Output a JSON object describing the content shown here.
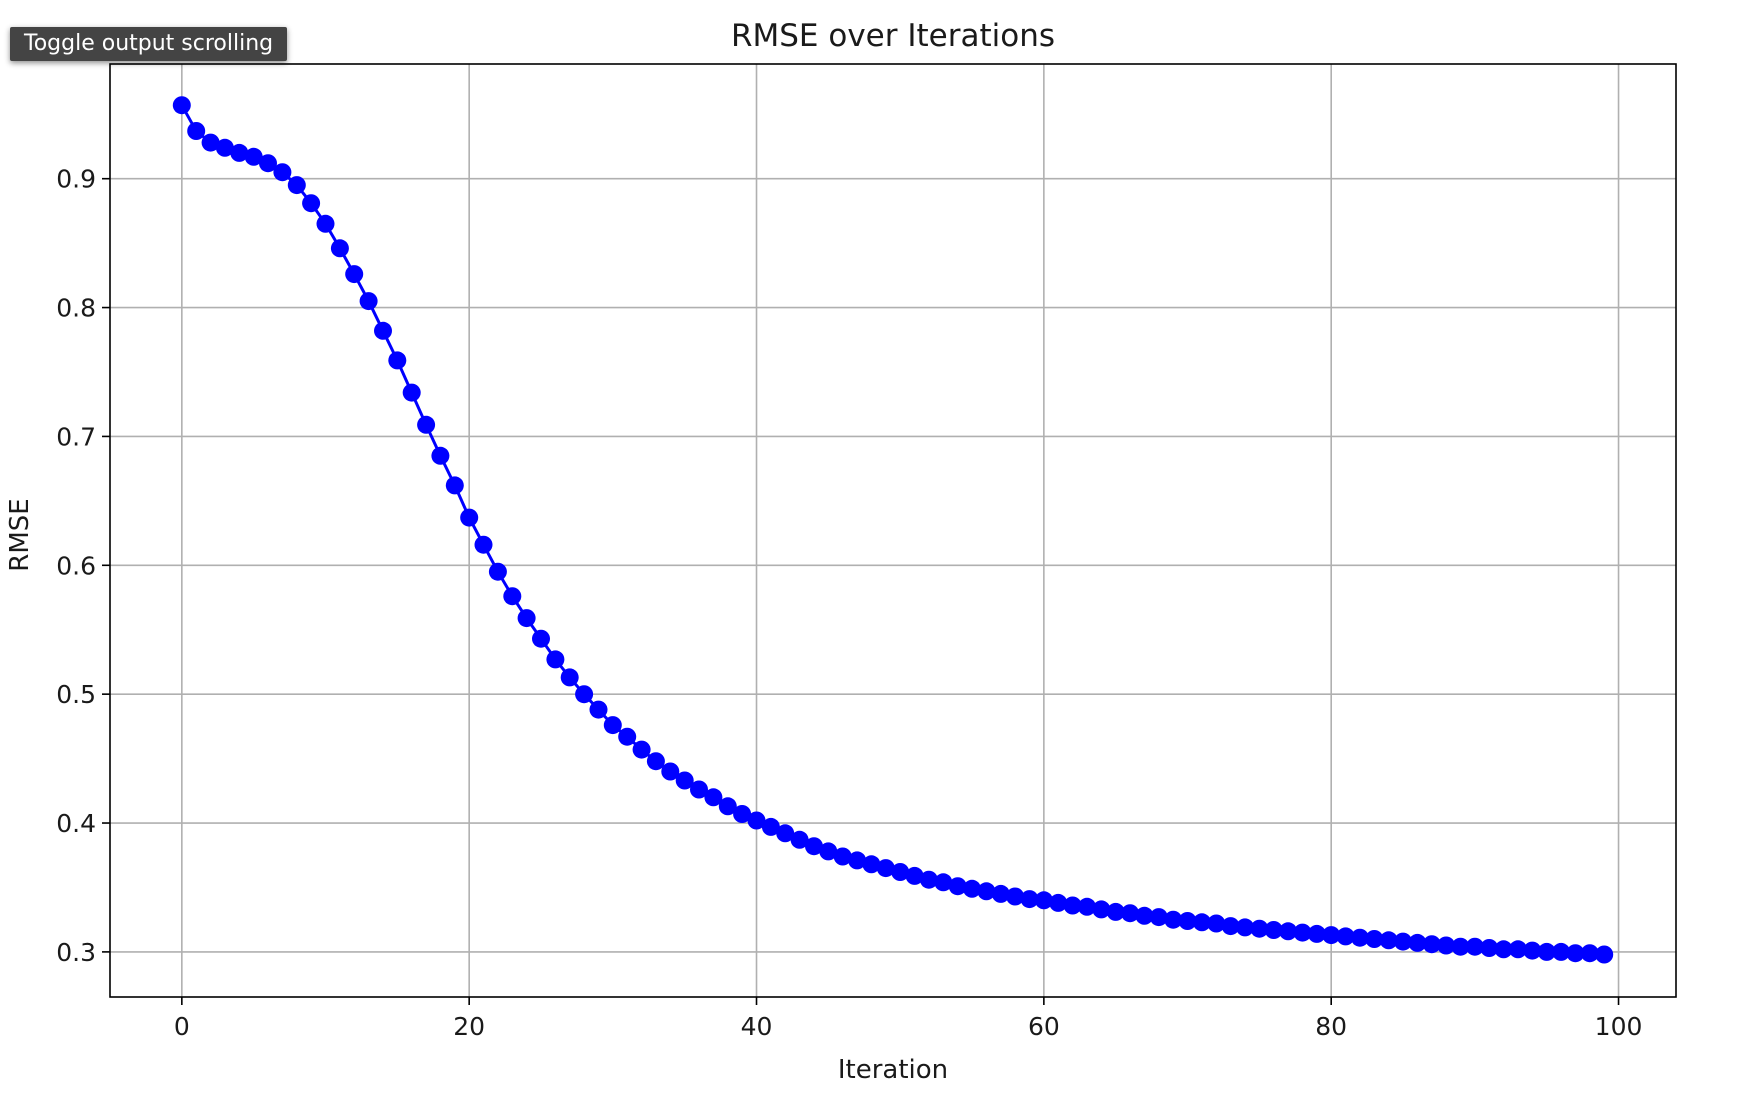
{
  "tooltip": {
    "label": "Toggle output scrolling"
  },
  "chart_data": {
    "type": "line",
    "title": "RMSE over Iterations",
    "xlabel": "Iteration",
    "ylabel": "RMSE",
    "xlim": [
      -5,
      104
    ],
    "ylim": [
      0.265,
      0.989
    ],
    "xticks": [
      0,
      20,
      40,
      60,
      80,
      100
    ],
    "xtick_labels": [
      "0",
      "20",
      "40",
      "60",
      "80",
      "100"
    ],
    "yticks": [
      0.3,
      0.4,
      0.5,
      0.6,
      0.7,
      0.8,
      0.9
    ],
    "ytick_labels": [
      "0.3",
      "0.4",
      "0.5",
      "0.6",
      "0.7",
      "0.8",
      "0.9"
    ],
    "grid": true,
    "marker": "o",
    "color": "#0000ff",
    "series": [
      {
        "x": [
          0,
          1,
          2,
          3,
          4,
          5,
          6,
          7,
          8,
          9,
          10,
          11,
          12,
          13,
          14,
          15,
          16,
          17,
          18,
          19,
          20,
          21,
          22,
          23,
          24,
          25,
          26,
          27,
          28,
          29,
          30,
          31,
          32,
          33,
          34,
          35,
          36,
          37,
          38,
          39,
          40,
          41,
          42,
          43,
          44,
          45,
          46,
          47,
          48,
          49,
          50,
          51,
          52,
          53,
          54,
          55,
          56,
          57,
          58,
          59,
          60,
          61,
          62,
          63,
          64,
          65,
          66,
          67,
          68,
          69,
          70,
          71,
          72,
          73,
          74,
          75,
          76,
          77,
          78,
          79,
          80,
          81,
          82,
          83,
          84,
          85,
          86,
          87,
          88,
          89,
          90,
          91,
          92,
          93,
          94,
          95,
          96,
          97,
          98,
          99
        ],
        "values": [
          0.957,
          0.937,
          0.928,
          0.924,
          0.92,
          0.917,
          0.912,
          0.905,
          0.895,
          0.881,
          0.865,
          0.846,
          0.826,
          0.805,
          0.782,
          0.759,
          0.734,
          0.709,
          0.685,
          0.662,
          0.637,
          0.616,
          0.595,
          0.576,
          0.559,
          0.543,
          0.527,
          0.513,
          0.5,
          0.488,
          0.476,
          0.467,
          0.457,
          0.448,
          0.44,
          0.433,
          0.426,
          0.42,
          0.413,
          0.407,
          0.402,
          0.397,
          0.392,
          0.387,
          0.382,
          0.378,
          0.374,
          0.371,
          0.368,
          0.365,
          0.362,
          0.359,
          0.356,
          0.354,
          0.351,
          0.349,
          0.347,
          0.345,
          0.343,
          0.341,
          0.34,
          0.338,
          0.336,
          0.335,
          0.333,
          0.331,
          0.33,
          0.328,
          0.327,
          0.325,
          0.324,
          0.323,
          0.322,
          0.32,
          0.319,
          0.318,
          0.317,
          0.316,
          0.315,
          0.314,
          0.313,
          0.312,
          0.311,
          0.31,
          0.309,
          0.308,
          0.307,
          0.306,
          0.305,
          0.304,
          0.304,
          0.303,
          0.302,
          0.302,
          0.301,
          0.3,
          0.3,
          0.299,
          0.299,
          0.298
        ]
      }
    ]
  }
}
